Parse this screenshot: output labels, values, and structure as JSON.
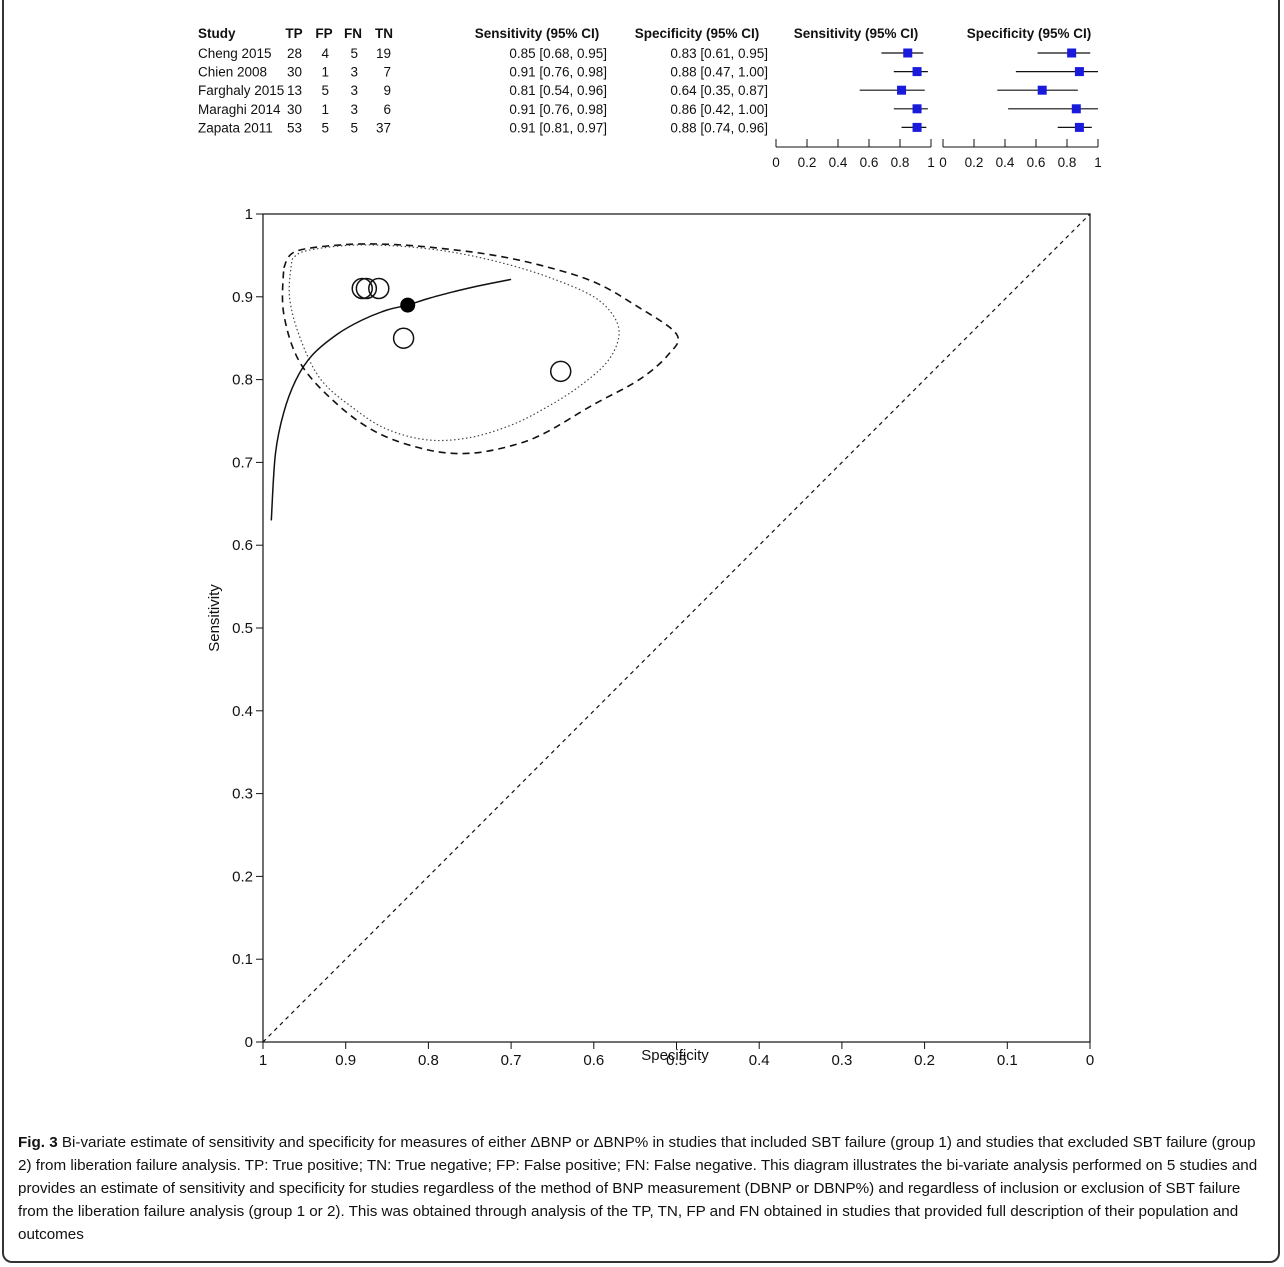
{
  "chart_data": [
    {
      "type": "table",
      "columns": [
        "Study",
        "TP",
        "FP",
        "FN",
        "TN",
        "Sensitivity (95% CI)",
        "Specificity (95% CI)"
      ],
      "rows": [
        {
          "study": "Cheng 2015",
          "tp": "28",
          "fp": "4",
          "fn": "5",
          "tn": "19",
          "sens_text": "0.85 [0.68, 0.95]",
          "spec_text": "0.83 [0.61, 0.95]",
          "sens": 0.85,
          "sens_lo": 0.68,
          "sens_hi": 0.95,
          "spec": 0.83,
          "spec_lo": 0.61,
          "spec_hi": 0.95
        },
        {
          "study": "Chien 2008",
          "tp": "30",
          "fp": "1",
          "fn": "3",
          "tn": "7",
          "sens_text": "0.91 [0.76, 0.98]",
          "spec_text": "0.88 [0.47, 1.00]",
          "sens": 0.91,
          "sens_lo": 0.76,
          "sens_hi": 0.98,
          "spec": 0.88,
          "spec_lo": 0.47,
          "spec_hi": 1.0
        },
        {
          "study": "Farghaly 2015",
          "tp": "13",
          "fp": "5",
          "fn": "3",
          "tn": "9",
          "sens_text": "0.81 [0.54, 0.96]",
          "spec_text": "0.64 [0.35, 0.87]",
          "sens": 0.81,
          "sens_lo": 0.54,
          "sens_hi": 0.96,
          "spec": 0.64,
          "spec_lo": 0.35,
          "spec_hi": 0.87
        },
        {
          "study": "Maraghi 2014",
          "tp": "30",
          "fp": "1",
          "fn": "3",
          "tn": "6",
          "sens_text": "0.91 [0.76, 0.98]",
          "spec_text": "0.86 [0.42, 1.00]",
          "sens": 0.91,
          "sens_lo": 0.76,
          "sens_hi": 0.98,
          "spec": 0.86,
          "spec_lo": 0.42,
          "spec_hi": 1.0
        },
        {
          "study": "Zapata 2011",
          "tp": "53",
          "fp": "5",
          "fn": "5",
          "tn": "37",
          "sens_text": "0.91 [0.81, 0.97]",
          "spec_text": "0.88 [0.74, 0.96]",
          "sens": 0.91,
          "sens_lo": 0.81,
          "sens_hi": 0.97,
          "spec": 0.88,
          "spec_lo": 0.74,
          "spec_hi": 0.96
        }
      ],
      "forest_headers": [
        "Sensitivity (95% CI)",
        "Specificity (95% CI)"
      ],
      "forest_ticks": [
        "0",
        "0.2",
        "0.4",
        "0.6",
        "0.8",
        "1"
      ],
      "forest_range": [
        0,
        1
      ],
      "marker_color": "#1a1adc"
    },
    {
      "type": "scatter",
      "xlabel": "Specificity",
      "ylabel": "Sensitivity",
      "xlim": [
        1,
        0
      ],
      "ylim": [
        0,
        1
      ],
      "x_ticks": [
        "1",
        "0.9",
        "0.8",
        "0.7",
        "0.6",
        "0.5",
        "0.4",
        "0.3",
        "0.2",
        "0.1",
        "0"
      ],
      "y_ticks": [
        "0",
        "0.1",
        "0.2",
        "0.3",
        "0.4",
        "0.5",
        "0.6",
        "0.7",
        "0.8",
        "0.9",
        "1"
      ],
      "study_points": [
        {
          "x": 0.83,
          "y": 0.85
        },
        {
          "x": 0.88,
          "y": 0.91
        },
        {
          "x": 0.64,
          "y": 0.81
        },
        {
          "x": 0.86,
          "y": 0.91
        },
        {
          "x": 0.875,
          "y": 0.91
        }
      ],
      "summary_point": {
        "x": 0.825,
        "y": 0.89
      },
      "sroc_curve": [
        [
          0.99,
          0.63
        ],
        [
          0.985,
          0.71
        ],
        [
          0.975,
          0.76
        ],
        [
          0.96,
          0.8
        ],
        [
          0.94,
          0.83
        ],
        [
          0.91,
          0.855
        ],
        [
          0.88,
          0.872
        ],
        [
          0.85,
          0.884
        ],
        [
          0.825,
          0.89
        ],
        [
          0.8,
          0.898
        ],
        [
          0.77,
          0.906
        ],
        [
          0.74,
          0.913
        ],
        [
          0.7,
          0.921
        ]
      ],
      "confidence_region": [
        [
          0.965,
          0.945
        ],
        [
          0.95,
          0.955
        ],
        [
          0.9,
          0.962
        ],
        [
          0.85,
          0.962
        ],
        [
          0.8,
          0.958
        ],
        [
          0.75,
          0.95
        ],
        [
          0.7,
          0.938
        ],
        [
          0.65,
          0.922
        ],
        [
          0.6,
          0.9
        ],
        [
          0.575,
          0.875
        ],
        [
          0.57,
          0.85
        ],
        [
          0.585,
          0.82
        ],
        [
          0.62,
          0.79
        ],
        [
          0.66,
          0.765
        ],
        [
          0.7,
          0.745
        ],
        [
          0.75,
          0.73
        ],
        [
          0.8,
          0.727
        ],
        [
          0.85,
          0.74
        ],
        [
          0.89,
          0.765
        ],
        [
          0.93,
          0.8
        ],
        [
          0.955,
          0.85
        ],
        [
          0.968,
          0.9
        ],
        [
          0.965,
          0.945
        ]
      ],
      "prediction_region": [
        [
          0.975,
          0.935
        ],
        [
          0.96,
          0.955
        ],
        [
          0.9,
          0.963
        ],
        [
          0.84,
          0.963
        ],
        [
          0.78,
          0.958
        ],
        [
          0.72,
          0.95
        ],
        [
          0.66,
          0.937
        ],
        [
          0.6,
          0.918
        ],
        [
          0.55,
          0.89
        ],
        [
          0.5,
          0.855
        ],
        [
          0.51,
          0.83
        ],
        [
          0.545,
          0.8
        ],
        [
          0.6,
          0.77
        ],
        [
          0.66,
          0.735
        ],
        [
          0.7,
          0.72
        ],
        [
          0.75,
          0.711
        ],
        [
          0.8,
          0.715
        ],
        [
          0.86,
          0.735
        ],
        [
          0.91,
          0.77
        ],
        [
          0.955,
          0.82
        ],
        [
          0.975,
          0.88
        ],
        [
          0.975,
          0.935
        ]
      ],
      "grid": false,
      "legend": "none"
    }
  ],
  "caption": {
    "label": "Fig. 3",
    "text": " Bi-variate estimate of sensitivity and specificity for measures of either ΔBNP or ΔBNP% in studies that included SBT failure (group 1) and studies that excluded SBT failure (group 2) from liberation failure analysis. TP: True positive; TN: True negative; FP: False positive; FN: False negative. This diagram illustrates the bi-variate analysis performed on 5 studies and provides an estimate of sensitivity and specificity for studies regardless of the method of BNP measurement (DBNP or DBNP%) and regardless of inclusion or exclusion of SBT failure from the liberation failure analysis (group 1 or 2). This was obtained through analysis of the TP, TN, FP and FN obtained in studies that provided full description of their population and outcomes"
  }
}
